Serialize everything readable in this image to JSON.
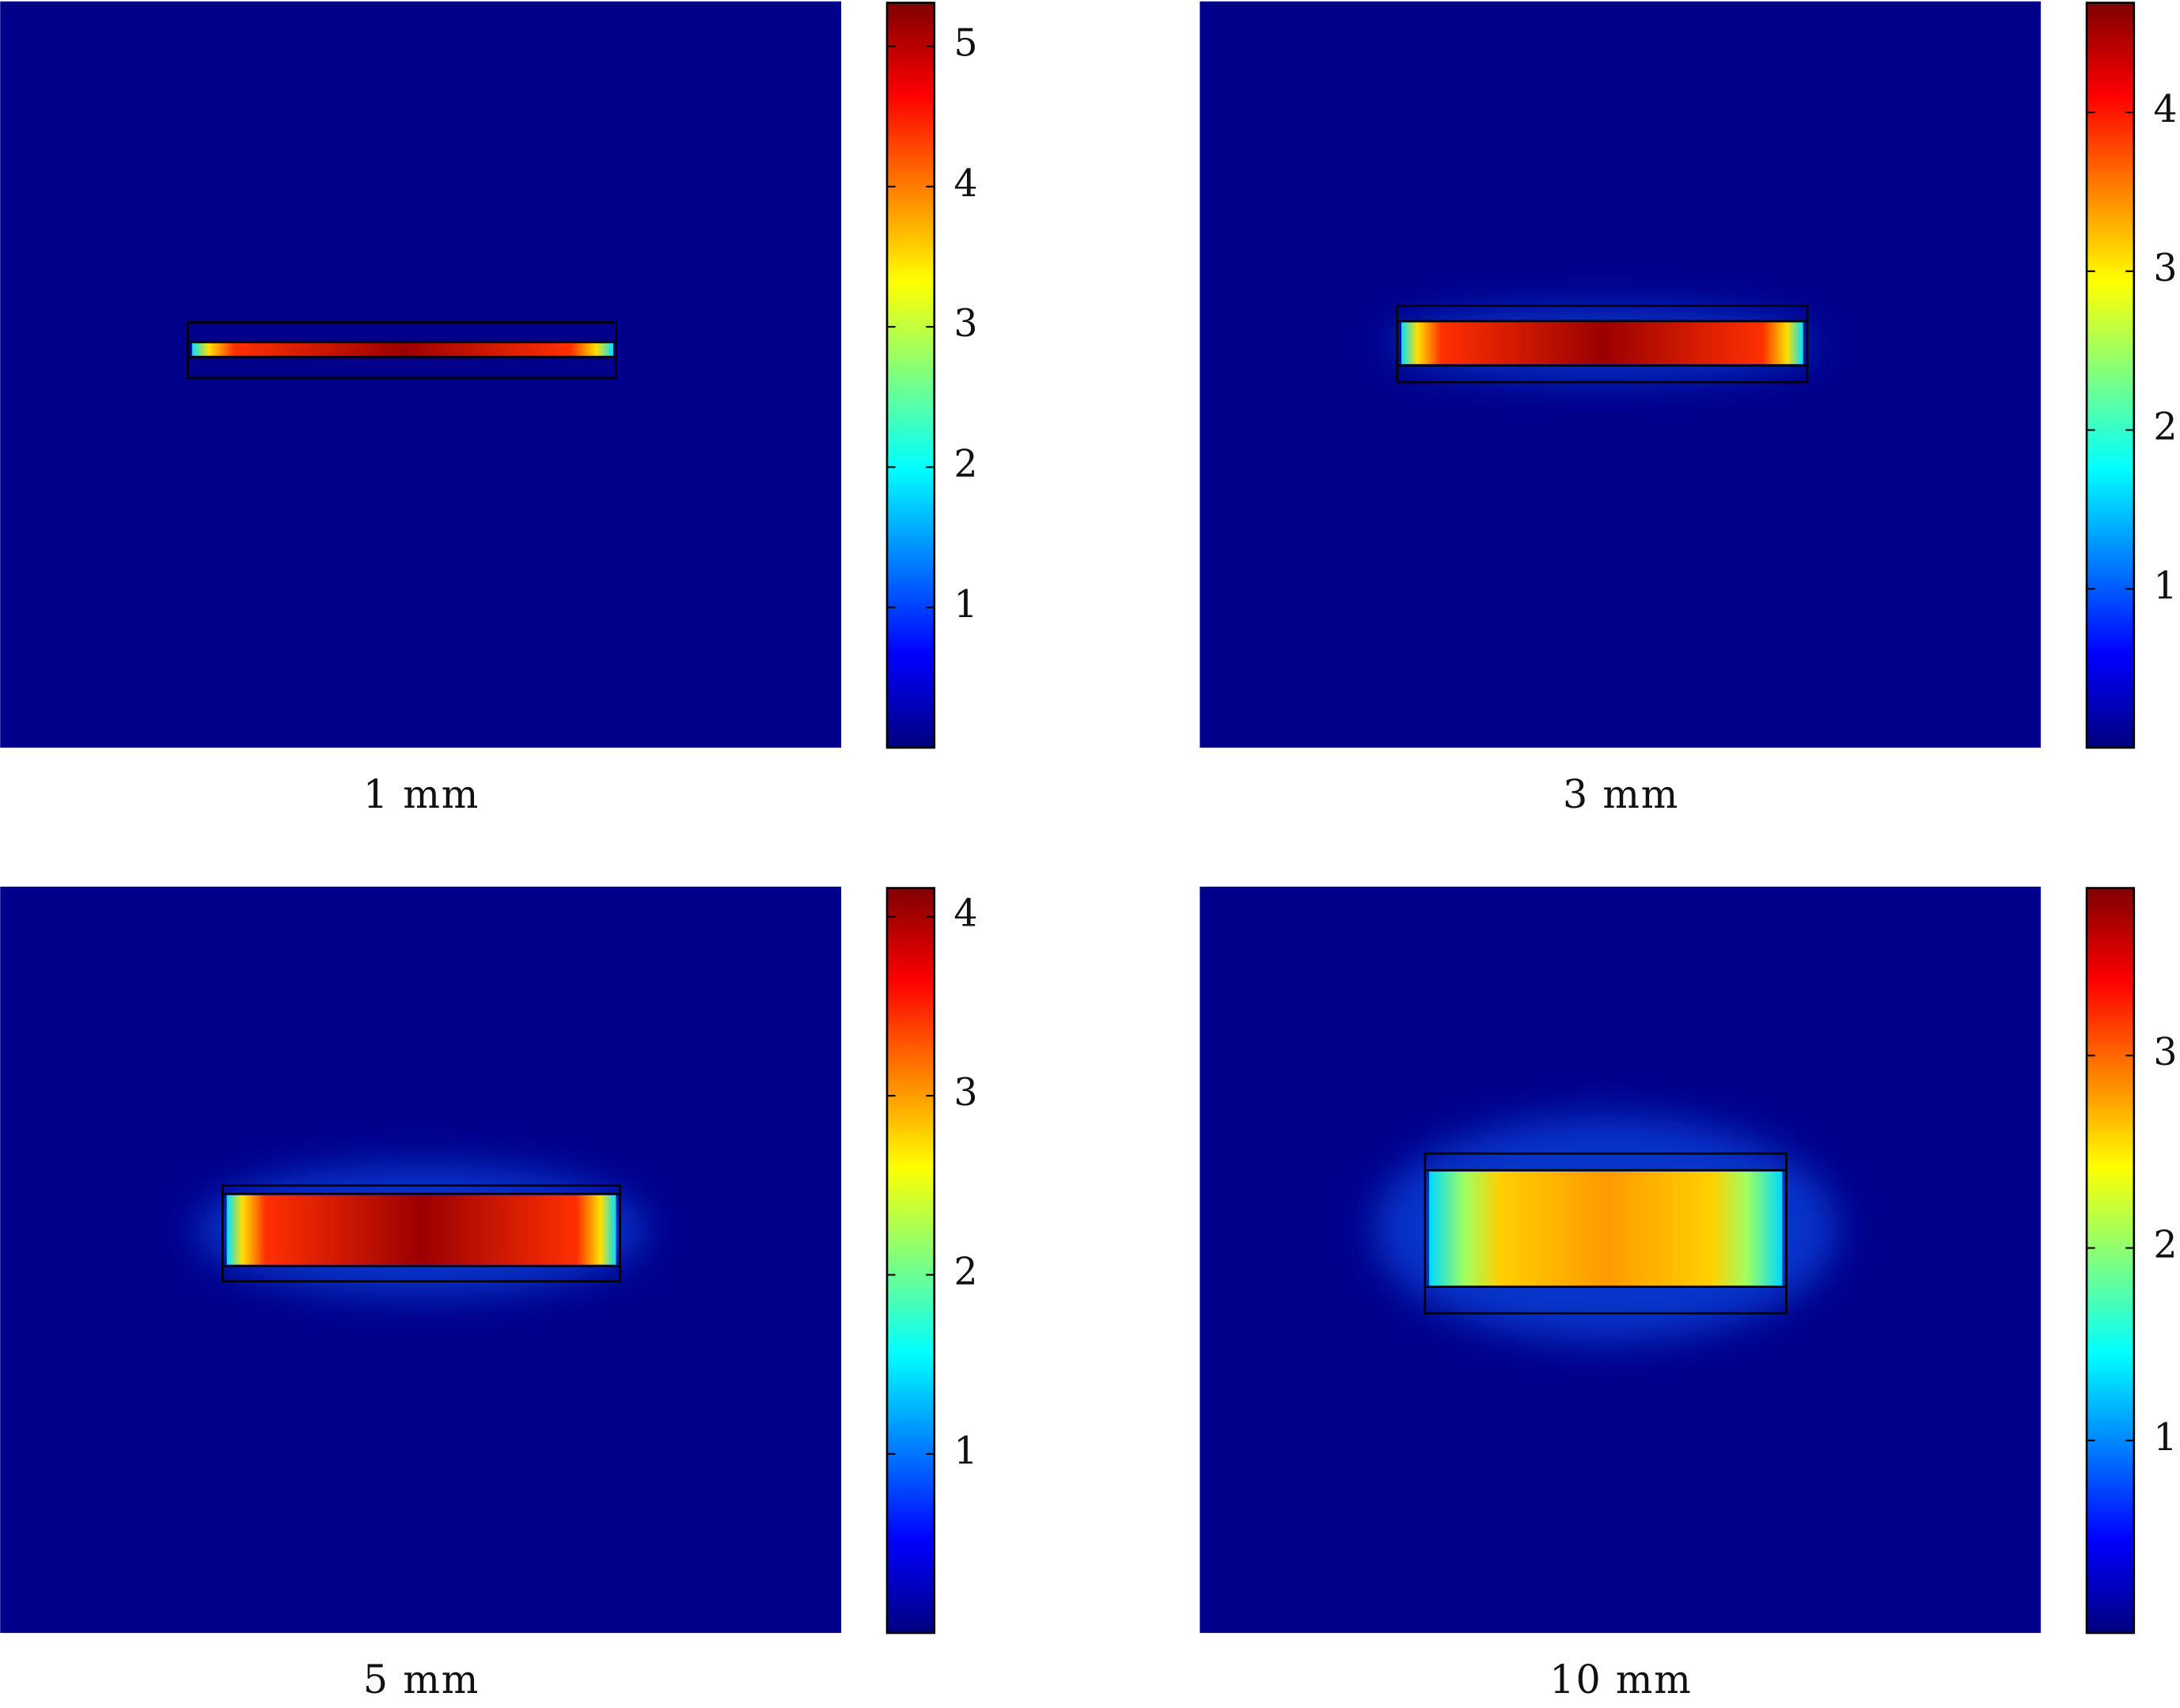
{
  "chart_data": [
    {
      "type": "heatmap",
      "title": "1 mm",
      "clim": [
        0,
        5.31
      ],
      "cticks": [
        1,
        2,
        3,
        4,
        5
      ]
    },
    {
      "type": "heatmap",
      "title": "3 mm",
      "clim": [
        0,
        4.69
      ],
      "cticks": [
        1,
        2,
        3,
        4
      ]
    },
    {
      "type": "heatmap",
      "title": "5 mm",
      "clim": [
        0,
        4.16
      ],
      "cticks": [
        1,
        2,
        3,
        4
      ]
    },
    {
      "type": "heatmap",
      "title": "10 mm",
      "clim": [
        0,
        3.87
      ],
      "cticks": [
        1,
        2,
        3
      ]
    }
  ]
}
